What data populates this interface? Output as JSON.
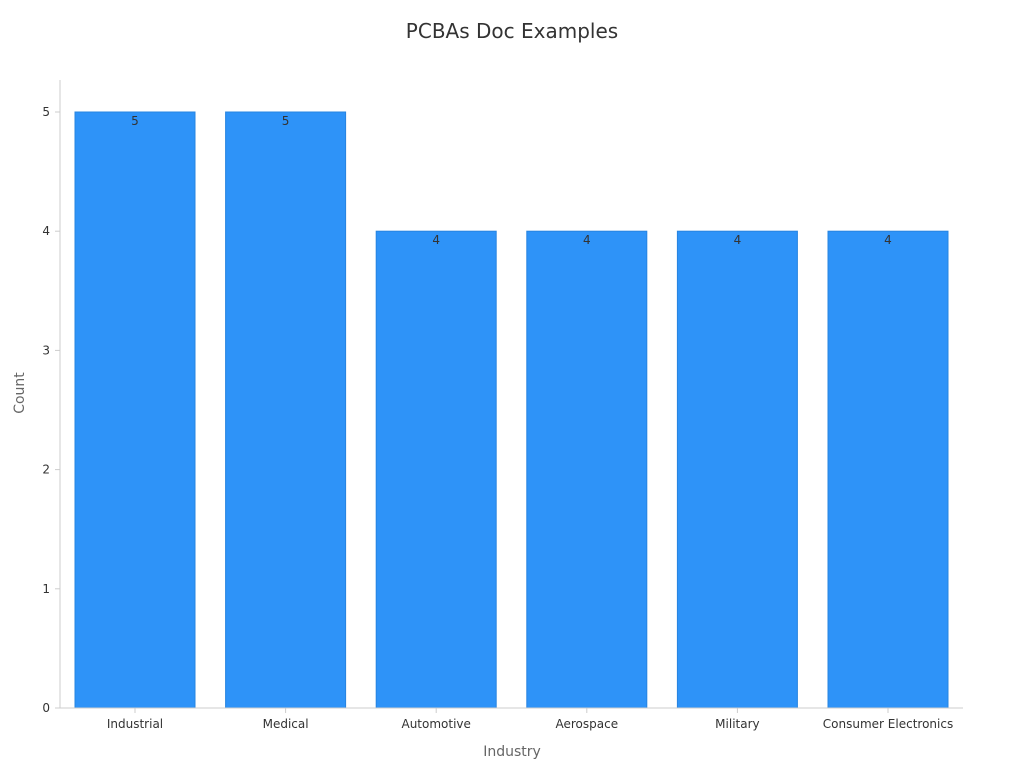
{
  "chart_data": {
    "type": "bar",
    "title": "PCBAs Doc Examples",
    "xlabel": "Industry",
    "ylabel": "Count",
    "categories": [
      "Industrial",
      "Medical",
      "Automotive",
      "Aerospace",
      "Military",
      "Consumer Electronics"
    ],
    "values": [
      5,
      5,
      4,
      4,
      4,
      4
    ],
    "ylim": [
      0,
      5
    ],
    "yticks": [
      "0",
      "1",
      "2",
      "3",
      "4",
      "5"
    ],
    "data_labels": [
      "5",
      "5",
      "4",
      "4",
      "4",
      "4"
    ],
    "grid": false,
    "legend": "none",
    "colors": {
      "bar": "#2E93F8",
      "bar_border": "#2784E0",
      "axis": "#cccccc",
      "text": "#333333",
      "axis_title": "#666666"
    }
  }
}
